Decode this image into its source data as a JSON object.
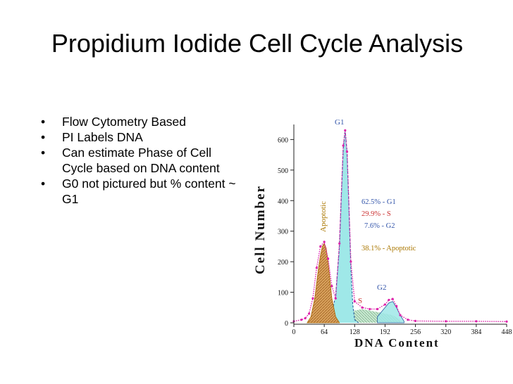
{
  "slide": {
    "title": "Propidium Iodide Cell Cycle Analysis",
    "bullets": [
      "Flow Cytometry Based",
      "PI Labels DNA",
      "Can estimate Phase of Cell Cycle based on DNA content",
      "G0 not pictured but % content ~ G1"
    ]
  },
  "chart_data": {
    "type": "area",
    "xlabel": "DNA Content",
    "ylabel": "Cell Number",
    "x_ticks": [
      "0",
      "64",
      "128",
      "192",
      "256",
      "320",
      "384",
      "448"
    ],
    "y_ticks": [
      "0",
      "100",
      "200",
      "300",
      "400",
      "500",
      "600"
    ],
    "xlim": [
      0,
      448
    ],
    "ylim": [
      0,
      640
    ],
    "grid": false,
    "peak_labels": [
      "G1",
      "S",
      "G2",
      "Apoptotic"
    ],
    "annotations": [
      {
        "text": "62.5% - G1",
        "color": "#3355aa"
      },
      {
        "text": "29.9% - S",
        "color": "#cc3333"
      },
      {
        "text": "7.6% - G2",
        "color": "#3355aa"
      },
      {
        "text": "38.1% - Apoptotic",
        "color": "#aa7700"
      }
    ],
    "colors": {
      "g1_fill": "#9fe8e8",
      "apoptotic_fill": "#d9a35e",
      "s_fill": "#c8e8d0",
      "total_curve": "#dd22aa",
      "g1_line": "#2a5aa0",
      "apoptotic_outline": "#aa6600"
    },
    "series": [
      {
        "name": "Apoptotic",
        "x": [
          28,
          36,
          44,
          48,
          52,
          56,
          60,
          64,
          68,
          72,
          76,
          80,
          88,
          96
        ],
        "y": [
          0,
          20,
          80,
          130,
          180,
          220,
          250,
          260,
          245,
          200,
          140,
          80,
          20,
          0
        ]
      },
      {
        "name": "G1",
        "x": [
          72,
          80,
          88,
          96,
          100,
          104,
          108,
          112,
          116,
          120,
          124,
          128,
          136
        ],
        "y": [
          0,
          30,
          90,
          250,
          420,
          570,
          630,
          560,
          380,
          180,
          60,
          10,
          0
        ]
      },
      {
        "name": "S",
        "x": [
          112,
          128,
          144,
          160,
          176,
          192,
          208,
          224
        ],
        "y": [
          30,
          40,
          45,
          40,
          35,
          30,
          25,
          10
        ]
      },
      {
        "name": "G2",
        "x": [
          176,
          184,
          192,
          200,
          208,
          216,
          224,
          232
        ],
        "y": [
          20,
          35,
          50,
          65,
          70,
          50,
          25,
          5
        ]
      },
      {
        "name": "Total",
        "x": [
          0,
          16,
          24,
          32,
          40,
          48,
          56,
          64,
          72,
          80,
          88,
          96,
          104,
          108,
          112,
          120,
          128,
          144,
          160,
          176,
          192,
          200,
          208,
          216,
          224,
          240,
          256,
          320,
          384,
          448
        ],
        "y": [
          5,
          10,
          15,
          30,
          80,
          180,
          250,
          265,
          210,
          120,
          80,
          260,
          580,
          630,
          560,
          200,
          70,
          50,
          45,
          45,
          60,
          75,
          78,
          55,
          25,
          10,
          6,
          5,
          5,
          4
        ]
      }
    ]
  }
}
